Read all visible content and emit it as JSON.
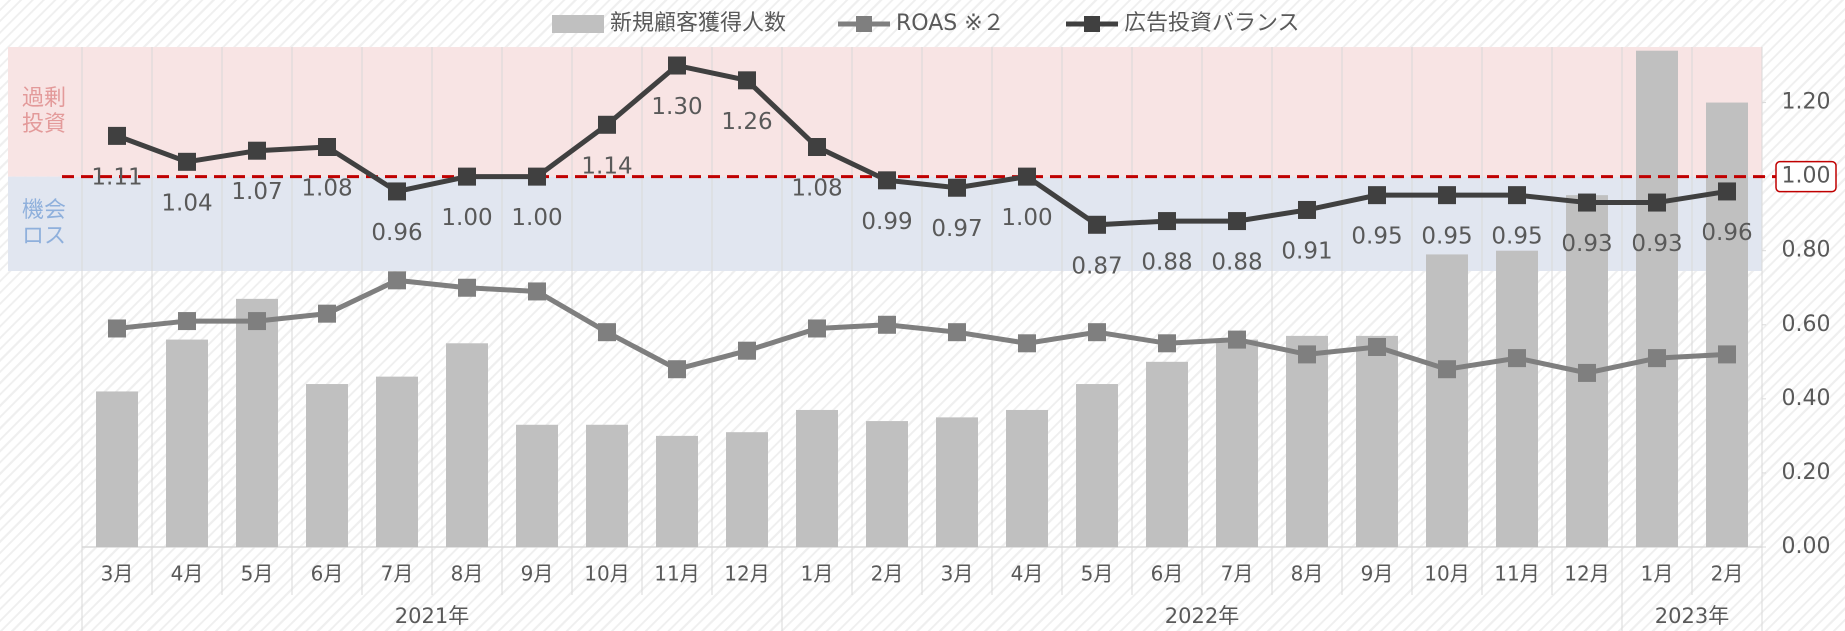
{
  "chart_data": {
    "type": "bar_line",
    "categories": [
      "3月",
      "4月",
      "5月",
      "6月",
      "7月",
      "8月",
      "9月",
      "10月",
      "11月",
      "12月",
      "1月",
      "2月",
      "3月",
      "4月",
      "5月",
      "6月",
      "7月",
      "8月",
      "9月",
      "10月",
      "11月",
      "12月",
      "1月",
      "2月"
    ],
    "year_groups": [
      {
        "label": "2021年",
        "span": 10
      },
      {
        "label": "2022年",
        "span": 12
      },
      {
        "label": "2023年",
        "span": 2
      }
    ],
    "region_labels": {
      "over": "過剰\n投資",
      "loss": "機会\nロス"
    },
    "threshold": 1.0,
    "series": [
      {
        "name": "新規顧客獲得人数",
        "type": "bar",
        "color": "#c0c0c0",
        "values": [
          0.42,
          0.56,
          0.67,
          0.44,
          0.46,
          0.55,
          0.33,
          0.33,
          0.3,
          0.31,
          0.37,
          0.34,
          0.35,
          0.37,
          0.44,
          0.5,
          0.56,
          0.57,
          0.57,
          0.79,
          0.8,
          0.95,
          1.34,
          1.2
        ]
      },
      {
        "name": "ROAS ※２",
        "type": "line",
        "color": "#7f7f7f",
        "values": [
          0.59,
          0.61,
          0.61,
          0.63,
          0.72,
          0.7,
          0.69,
          0.58,
          0.48,
          0.53,
          0.59,
          0.6,
          0.58,
          0.55,
          0.58,
          0.55,
          0.56,
          0.52,
          0.54,
          0.48,
          0.51,
          0.47,
          0.51,
          0.52
        ]
      },
      {
        "name": "広告投資バランス",
        "type": "line",
        "color": "#404040",
        "values": [
          1.11,
          1.04,
          1.07,
          1.08,
          0.96,
          1.0,
          1.0,
          1.14,
          1.3,
          1.26,
          1.08,
          0.99,
          0.97,
          1.0,
          0.87,
          0.88,
          0.88,
          0.91,
          0.95,
          0.95,
          0.95,
          0.93,
          0.93,
          0.96
        ],
        "value_labels": [
          "1.11",
          "1.04",
          "1.07",
          "1.08",
          "0.96",
          "1.00",
          "1.00",
          "1.14",
          "1.30",
          "1.26",
          "1.08",
          "0.99",
          "0.97",
          "1.00",
          "0.87",
          "0.88",
          "0.88",
          "0.91",
          "0.95",
          "0.95",
          "0.95",
          "0.93",
          "0.93",
          "0.96"
        ]
      }
    ],
    "ylim": [
      0,
      1.35
    ],
    "yticks": [
      {
        "value": 0,
        "label": "0.00"
      },
      {
        "value": 0.2,
        "label": "0.20"
      },
      {
        "value": 0.4,
        "label": "0.40"
      },
      {
        "value": 0.6,
        "label": "0.60"
      },
      {
        "value": 0.8,
        "label": "0.80"
      },
      {
        "value": 1.0,
        "label": "1.00"
      },
      {
        "value": 1.2,
        "label": "1.20"
      }
    ]
  }
}
